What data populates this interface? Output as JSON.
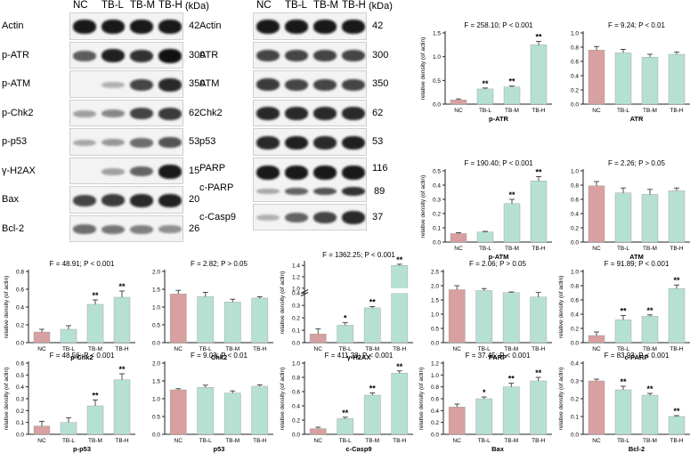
{
  "blots": {
    "lanes": [
      "NC",
      "TB-L",
      "TB-M",
      "TB-H"
    ],
    "unit": "(kDa)",
    "left": [
      {
        "label": "Actin",
        "kda": "42",
        "intensity": [
          0.95,
          0.95,
          0.95,
          0.95
        ]
      },
      {
        "label": "p-ATR",
        "kda": "300",
        "intensity": [
          0.55,
          0.9,
          0.8,
          1.0
        ]
      },
      {
        "label": "p-ATM",
        "kda": "350",
        "intensity": [
          0.0,
          0.05,
          0.7,
          0.85
        ]
      },
      {
        "label": "p-Chk2",
        "kda": "62",
        "intensity": [
          0.15,
          0.3,
          0.7,
          0.75
        ]
      },
      {
        "label": "p-p53",
        "kda": "53",
        "intensity": [
          0.1,
          0.2,
          0.45,
          0.6
        ]
      },
      {
        "label": "γ-H2AX",
        "kda": "15",
        "intensity": [
          0.0,
          0.15,
          0.5,
          0.95
        ]
      },
      {
        "label": "Bax",
        "kda": "20",
        "intensity": [
          0.7,
          0.75,
          0.85,
          0.9
        ]
      },
      {
        "label": "Bcl-2",
        "kda": "26",
        "intensity": [
          0.45,
          0.4,
          0.35,
          0.25
        ]
      }
    ],
    "right": [
      {
        "label": "Actin",
        "kda": "42",
        "intensity": [
          0.95,
          0.95,
          0.95,
          0.95
        ]
      },
      {
        "label": "ATR",
        "kda": "300",
        "intensity": [
          0.7,
          0.7,
          0.7,
          0.7
        ]
      },
      {
        "label": "ATM",
        "kda": "350",
        "intensity": [
          0.75,
          0.7,
          0.7,
          0.7
        ]
      },
      {
        "label": "Chk2",
        "kda": "62",
        "intensity": [
          0.85,
          0.85,
          0.85,
          0.85
        ]
      },
      {
        "label": "p53",
        "kda": "53",
        "intensity": [
          0.85,
          0.9,
          0.85,
          0.9
        ]
      },
      {
        "label": "PARP",
        "label2": "c-PARP",
        "kda": "116",
        "kda2": "89",
        "intensity": [
          0.95,
          0.95,
          0.95,
          0.95
        ],
        "intensity2": [
          0.1,
          0.5,
          0.6,
          0.8
        ]
      },
      {
        "label": "c-Casp9",
        "kda": "37",
        "intensity": [
          0.05,
          0.5,
          0.7,
          0.85
        ]
      }
    ]
  },
  "chart_data": [
    {
      "type": "bar",
      "id": "p-ATR",
      "xlabel": "p-ATR",
      "ylabel": "relative density (of actin)",
      "stat": "F = 258.10; P < 0.001",
      "categories": [
        "NC",
        "TB-L",
        "TB-M",
        "TB-H"
      ],
      "values": [
        0.09,
        0.32,
        0.36,
        1.25
      ],
      "errors": [
        0.02,
        0.02,
        0.02,
        0.07
      ],
      "sig": [
        "",
        "**",
        "**",
        "**"
      ],
      "ylim": [
        0,
        1.5
      ],
      "yticks": [
        0.0,
        0.5,
        1.0,
        1.5
      ],
      "yticklabels": [
        "0.0",
        "0.5",
        "1.0",
        "1.5"
      ]
    },
    {
      "type": "bar",
      "id": "ATR",
      "xlabel": "ATR",
      "ylabel": "",
      "stat": "F = 9.24; P < 0.01",
      "categories": [
        "NC",
        "TB-L",
        "TB-M",
        "TB-H"
      ],
      "values": [
        0.76,
        0.72,
        0.66,
        0.7
      ],
      "errors": [
        0.05,
        0.05,
        0.04,
        0.03
      ],
      "sig": [
        "",
        "",
        "",
        ""
      ],
      "ylim": [
        0,
        1.0
      ],
      "yticks": [
        0.0,
        0.2,
        0.4,
        0.6,
        0.8,
        1.0
      ],
      "yticklabels": [
        "0.0",
        "0.2",
        "0.4",
        "0.6",
        "0.8",
        "1.0"
      ]
    },
    {
      "type": "bar",
      "id": "p-ATM",
      "xlabel": "p-ATM",
      "ylabel": "relative density (of actin)",
      "stat": "F = 190.40; P < 0.001",
      "categories": [
        "NC",
        "TB-L",
        "TB-M",
        "TB-H"
      ],
      "values": [
        0.06,
        0.07,
        0.27,
        0.43
      ],
      "errors": [
        0.005,
        0.005,
        0.03,
        0.03
      ],
      "sig": [
        "",
        "",
        "**",
        "**"
      ],
      "ylim": [
        0,
        0.5
      ],
      "yticks": [
        0.0,
        0.1,
        0.2,
        0.3,
        0.4,
        0.5
      ],
      "yticklabels": [
        "0.0",
        "0.1",
        "0.2",
        "0.3",
        "0.4",
        "0.5"
      ]
    },
    {
      "type": "bar",
      "id": "ATM",
      "xlabel": "ATM",
      "ylabel": "",
      "stat": "F = 2.26; P > 0.05",
      "categories": [
        "NC",
        "TB-L",
        "TB-M",
        "TB-H"
      ],
      "values": [
        0.79,
        0.69,
        0.67,
        0.72
      ],
      "errors": [
        0.06,
        0.07,
        0.07,
        0.04
      ],
      "sig": [
        "",
        "",
        "",
        ""
      ],
      "ylim": [
        0,
        1.0
      ],
      "yticks": [
        0.0,
        0.2,
        0.4,
        0.6,
        0.8,
        1.0
      ],
      "yticklabels": [
        "0.0",
        "0.2",
        "0.4",
        "0.6",
        "0.8",
        "1.0"
      ]
    },
    {
      "type": "bar",
      "id": "p-Chk2",
      "xlabel": "p-Chk2",
      "ylabel": "relative density (of actin)",
      "stat": "F = 48.91; P < 0.001",
      "categories": [
        "NC",
        "TB-L",
        "TB-M",
        "TB-H"
      ],
      "values": [
        0.12,
        0.15,
        0.43,
        0.51
      ],
      "errors": [
        0.03,
        0.04,
        0.05,
        0.07
      ],
      "sig": [
        "",
        "",
        "**",
        "**"
      ],
      "ylim": [
        0,
        0.8
      ],
      "yticks": [
        0.0,
        0.2,
        0.4,
        0.6,
        0.8
      ],
      "yticklabels": [
        "0.0",
        "0.2",
        "0.4",
        "0.6",
        "0.8"
      ]
    },
    {
      "type": "bar",
      "id": "Chk2",
      "xlabel": "Chk2",
      "ylabel": "",
      "stat": "F = 2.82; P > 0.05",
      "categories": [
        "NC",
        "TB-L",
        "TB-M",
        "TB-H"
      ],
      "values": [
        1.37,
        1.29,
        1.14,
        1.25
      ],
      "errors": [
        0.1,
        0.12,
        0.08,
        0.04
      ],
      "sig": [
        "",
        "",
        "",
        ""
      ],
      "ylim": [
        0,
        2.0
      ],
      "yticks": [
        0.0,
        0.5,
        1.0,
        1.5,
        2.0
      ],
      "yticklabels": [
        "0.0",
        "0.5",
        "1.0",
        "1.5",
        "2.0"
      ]
    },
    {
      "type": "bar",
      "id": "γ-H2AX",
      "xlabel": "γ-H2AX",
      "ylabel": "relative density (of actin)",
      "stat": "F = 1362.25; P < 0.001",
      "categories": [
        "NC",
        "TB-L",
        "TB-M",
        "TB-H"
      ],
      "values": [
        0.07,
        0.14,
        0.28,
        1.4
      ],
      "errors": [
        0.04,
        0.02,
        0.01,
        0.02
      ],
      "sig": [
        "",
        "*",
        "**",
        "**"
      ],
      "ylim": [
        0,
        0.5
      ],
      "yticks": [
        0.0,
        0.1,
        0.2,
        0.3,
        0.4
      ],
      "yticklabels": [
        "0.0",
        "0.1",
        "0.2",
        "0.3",
        "0.4"
      ],
      "axis_break": {
        "lower_max": 0.4,
        "upper_ticks": [
          1.0,
          1.2,
          1.4
        ],
        "upper_ticklabels": [
          "1.0",
          "1.2",
          "1.4"
        ]
      }
    },
    {
      "type": "bar",
      "id": "PARP",
      "xlabel": "PARP",
      "ylabel": "",
      "stat": "F = 2.06; P > 0.05",
      "categories": [
        "NC",
        "TB-L",
        "TB-M",
        "TB-H"
      ],
      "values": [
        1.86,
        1.83,
        1.76,
        1.6
      ],
      "errors": [
        0.14,
        0.07,
        0.02,
        0.16
      ],
      "sig": [
        "",
        "",
        "",
        ""
      ],
      "ylim": [
        0,
        2.5
      ],
      "yticks": [
        0.0,
        0.5,
        1.0,
        1.5,
        2.0,
        2.5
      ],
      "yticklabels": [
        "0.0",
        "0.5",
        "1.0",
        "1.5",
        "2.0",
        "2.5"
      ]
    },
    {
      "type": "bar",
      "id": "c-PARP",
      "xlabel": "c-PARP",
      "ylabel": "relative density (of actin)",
      "stat": "F = 91.89; P < 0.001",
      "categories": [
        "NC",
        "TB-L",
        "TB-M",
        "TB-H"
      ],
      "values": [
        0.1,
        0.32,
        0.37,
        0.76
      ],
      "errors": [
        0.05,
        0.06,
        0.02,
        0.05
      ],
      "sig": [
        "",
        "**",
        "**",
        "**"
      ],
      "ylim": [
        0,
        1.0
      ],
      "yticks": [
        0.0,
        0.2,
        0.4,
        0.6,
        0.8,
        1.0
      ],
      "yticklabels": [
        "0.0",
        "0.2",
        "0.4",
        "0.6",
        "0.8",
        "1.0"
      ]
    },
    {
      "type": "bar",
      "id": "p-p53",
      "xlabel": "p-p53",
      "ylabel": "relative density (of actin)",
      "stat": "F = 48.56; P < 0.001",
      "categories": [
        "NC",
        "TB-L",
        "TB-M",
        "TB-H"
      ],
      "values": [
        0.07,
        0.1,
        0.24,
        0.46
      ],
      "errors": [
        0.04,
        0.04,
        0.05,
        0.05
      ],
      "sig": [
        "",
        "",
        "**",
        "**"
      ],
      "ylim": [
        0,
        0.6
      ],
      "yticks": [
        0.0,
        0.1,
        0.2,
        0.3,
        0.4,
        0.5,
        0.6
      ],
      "yticklabels": [
        "0.0",
        "0.1",
        "0.2",
        "0.3",
        "0.4",
        "0.5",
        "0.6"
      ]
    },
    {
      "type": "bar",
      "id": "p53",
      "xlabel": "p53",
      "ylabel": "",
      "stat": "F = 9.03; P < 0.01",
      "categories": [
        "NC",
        "TB-L",
        "TB-M",
        "TB-H"
      ],
      "values": [
        1.25,
        1.32,
        1.16,
        1.35
      ],
      "errors": [
        0.03,
        0.06,
        0.06,
        0.04
      ],
      "sig": [
        "",
        "",
        "",
        ""
      ],
      "ylim": [
        0,
        2.0
      ],
      "yticks": [
        0.0,
        0.5,
        1.0,
        1.5,
        2.0
      ],
      "yticklabels": [
        "0.0",
        "0.5",
        "1.0",
        "1.5",
        "2.0"
      ]
    },
    {
      "type": "bar",
      "id": "c-Casp9",
      "xlabel": "c-Casp9",
      "ylabel": "relative density (of actin)",
      "stat": "F = 411.28; P < 0.001",
      "categories": [
        "NC",
        "TB-L",
        "TB-M",
        "TB-H"
      ],
      "values": [
        0.08,
        0.22,
        0.55,
        0.86
      ],
      "errors": [
        0.02,
        0.02,
        0.03,
        0.03
      ],
      "sig": [
        "",
        "**",
        "**",
        "**"
      ],
      "ylim": [
        0,
        1.0
      ],
      "yticks": [
        0.0,
        0.2,
        0.4,
        0.6,
        0.8,
        1.0
      ],
      "yticklabels": [
        "0.0",
        "0.2",
        "0.4",
        "0.6",
        "0.8",
        "1.0"
      ]
    },
    {
      "type": "bar",
      "id": "Bax",
      "xlabel": "Bax",
      "ylabel": "relative density (of actin)",
      "stat": "F = 37.45; P < 0.001",
      "categories": [
        "NC",
        "TB-L",
        "TB-M",
        "TB-H"
      ],
      "values": [
        0.46,
        0.6,
        0.8,
        0.9
      ],
      "errors": [
        0.05,
        0.03,
        0.06,
        0.06
      ],
      "sig": [
        "",
        "*",
        "**",
        "**"
      ],
      "ylim": [
        0,
        1.2
      ],
      "yticks": [
        0.0,
        0.2,
        0.4,
        0.6,
        0.8,
        1.0,
        1.2
      ],
      "yticklabels": [
        "0.0",
        "0.2",
        "0.4",
        "0.6",
        "0.8",
        "1.0",
        "1.2"
      ]
    },
    {
      "type": "bar",
      "id": "Bcl-2",
      "xlabel": "Bcl-2",
      "ylabel": "relative density (of actin)",
      "stat": "F = 83.93; P < 0.001",
      "categories": [
        "NC",
        "TB-L",
        "TB-M",
        "TB-H"
      ],
      "values": [
        0.3,
        0.25,
        0.22,
        0.1
      ],
      "errors": [
        0.01,
        0.02,
        0.01,
        0.005
      ],
      "sig": [
        "",
        "**",
        "**",
        "**"
      ],
      "ylim": [
        0,
        0.4
      ],
      "yticks": [
        0.0,
        0.1,
        0.2,
        0.3,
        0.4
      ],
      "yticklabels": [
        "0.0",
        "0.1",
        "0.2",
        "0.3",
        "0.4"
      ]
    }
  ],
  "colors": {
    "control": "#d8a0a0",
    "treated": "#b6e0d4",
    "axis": "#222222",
    "band": "#111111"
  }
}
